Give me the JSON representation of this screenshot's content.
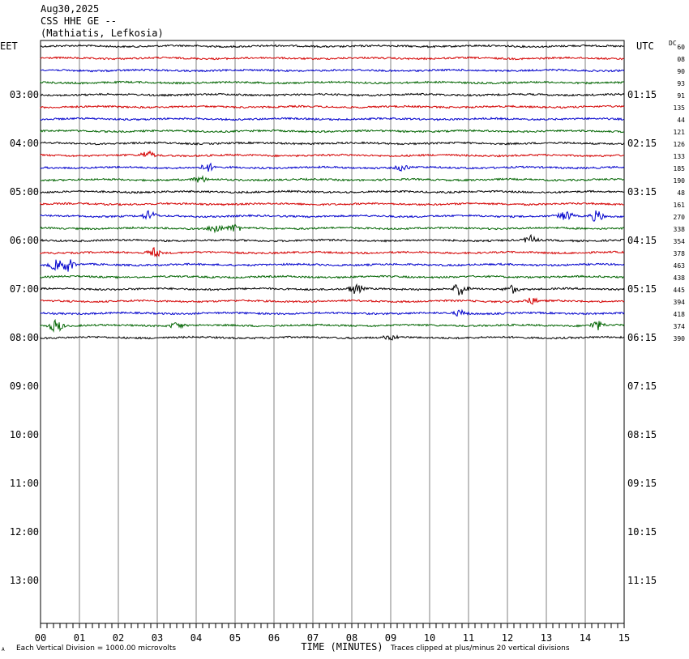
{
  "header": {
    "date": "Aug30,2025",
    "station": "CSS HHE GE --",
    "location": "(Mathiatis, Lefkosia)"
  },
  "left_zone_label": "EET",
  "right_zone_label": "UTC",
  "dc_label": "DC",
  "footer": {
    "scale_note": "Each Vertical Division = 1000.00 microvolts",
    "x_title": "TIME (MINUTES)",
    "clip_note": "Traces clipped at plus/minus 20 vertical divisions",
    "corner_mark": "A"
  },
  "colors": {
    "black": "#000000",
    "red": "#d40000",
    "blue": "#0000cc",
    "green": "#006400",
    "grid": "#808080"
  },
  "chart_data": {
    "type": "line",
    "title": "",
    "xlabel": "TIME (MINUTES)",
    "x_range": [
      0,
      15
    ],
    "x_ticks": [
      "00",
      "01",
      "02",
      "03",
      "04",
      "05",
      "06",
      "07",
      "08",
      "09",
      "10",
      "11",
      "12",
      "13",
      "14",
      "15"
    ],
    "rows_per_hour": 4,
    "left_hour_labels": [
      "03:00",
      "04:00",
      "05:00",
      "06:00",
      "07:00",
      "08:00",
      "09:00",
      "10:00",
      "11:00",
      "12:00",
      "13:00"
    ],
    "right_hour_labels": [
      "01:15",
      "02:15",
      "03:15",
      "04:15",
      "05:15",
      "06:15",
      "07:15",
      "08:15",
      "09:15",
      "10:15",
      "11:15"
    ],
    "dc_offsets": [
      "60",
      "08",
      "90",
      "93",
      "91",
      "135",
      "44",
      "121",
      "126",
      "133",
      "185",
      "190",
      "48",
      "161",
      "270",
      "338",
      "354",
      "378",
      "463",
      "438",
      "445",
      "394",
      "418",
      "374",
      "390"
    ],
    "trace_colors": [
      "black",
      "red",
      "blue",
      "green"
    ],
    "grid": true
  }
}
